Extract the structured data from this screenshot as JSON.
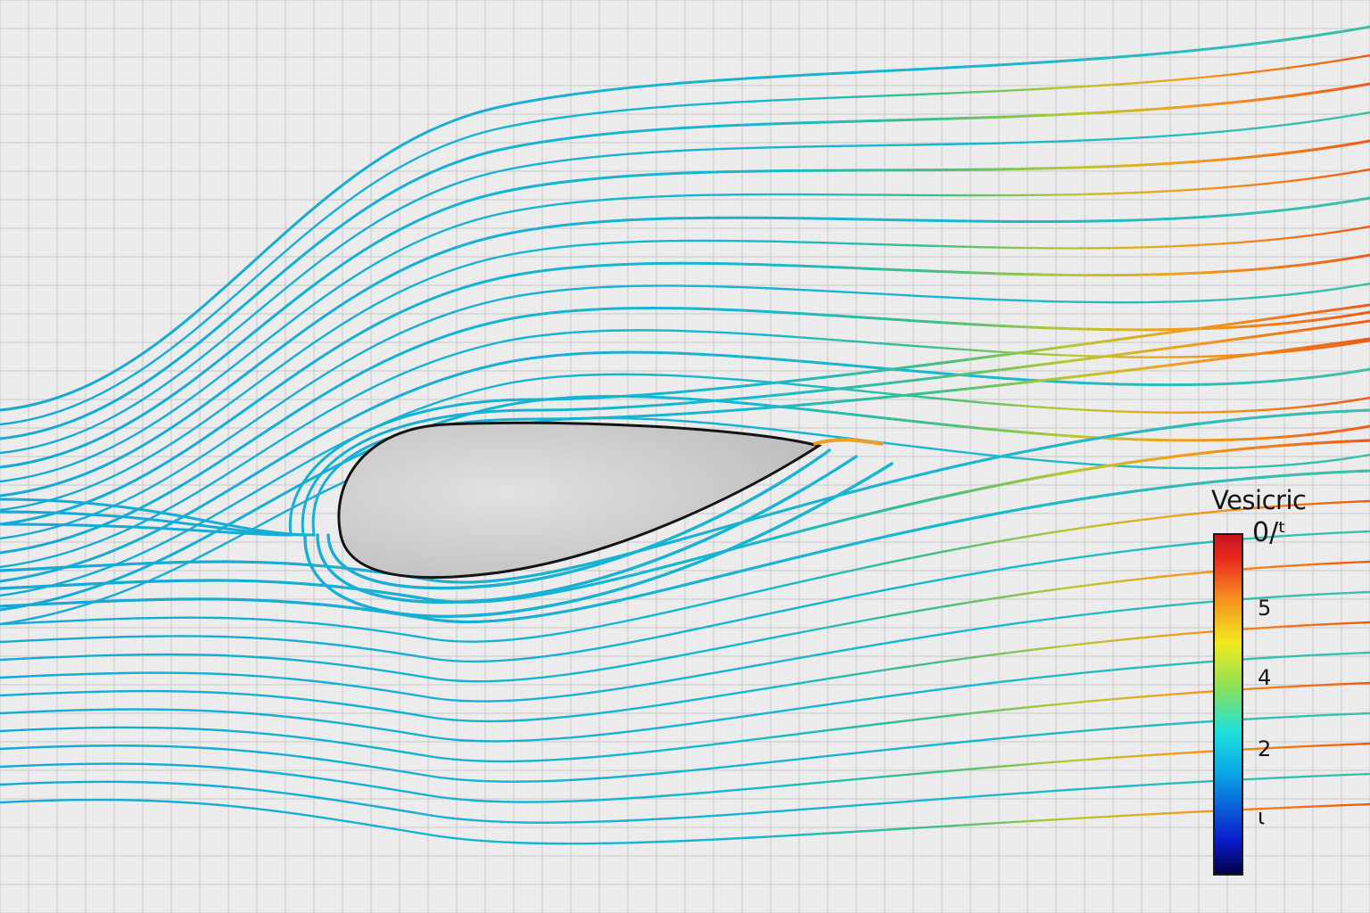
{
  "legend": {
    "title": "Vesicric",
    "ticks": {
      "top": "0/ᵗ",
      "t5": "5",
      "t4": "4",
      "t2": "2",
      "t1": "ι"
    },
    "colormap": [
      "#00004a",
      "#0a1ccc",
      "#0aa8e6",
      "#1ee0dc",
      "#8ce05a",
      "#f2ea1e",
      "#f68a1e",
      "#e8281e",
      "#c8141e"
    ]
  },
  "colors": {
    "background": "#ececec",
    "grid": "#c9c9c9",
    "airfoil_fill": "#d9d9d9",
    "airfoil_edge": "#141414"
  }
}
